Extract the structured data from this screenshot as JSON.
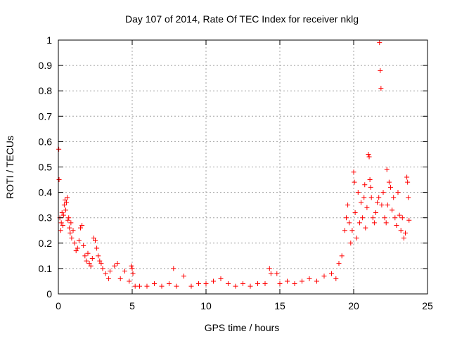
{
  "chart_data": {
    "type": "scatter",
    "title": "Day 107 of 2014, Rate Of TEC Index for receiver nklg",
    "xlabel": "GPS time / hours",
    "ylabel": "ROTI / TECUs",
    "xlim": [
      0,
      25
    ],
    "ylim": [
      0,
      1
    ],
    "x_ticks": [
      0,
      5,
      10,
      15,
      20,
      25
    ],
    "y_ticks": [
      0,
      0.1,
      0.2,
      0.3,
      0.4,
      0.5,
      0.6,
      0.7,
      0.8,
      0.9,
      1
    ],
    "x_tick_labels": [
      "0",
      "5",
      "10",
      "15",
      "20",
      "25"
    ],
    "y_tick_labels": [
      "0",
      "0.1",
      "0.2",
      "0.3",
      "0.4",
      "0.5",
      "0.6",
      "0.7",
      "0.8",
      "0.9",
      "1"
    ],
    "grid": true,
    "marker": "+",
    "series": [
      {
        "color": "#ff0000",
        "points": [
          [
            0.03,
            0.57
          ],
          [
            0.05,
            0.45
          ],
          [
            0.1,
            0.3
          ],
          [
            0.15,
            0.25
          ],
          [
            0.2,
            0.28
          ],
          [
            0.25,
            0.32
          ],
          [
            0.3,
            0.27
          ],
          [
            0.35,
            0.31
          ],
          [
            0.4,
            0.35
          ],
          [
            0.45,
            0.37
          ],
          [
            0.5,
            0.33
          ],
          [
            0.55,
            0.36
          ],
          [
            0.6,
            0.38
          ],
          [
            0.65,
            0.29
          ],
          [
            0.7,
            0.3
          ],
          [
            0.75,
            0.26
          ],
          [
            0.8,
            0.24
          ],
          [
            0.85,
            0.28
          ],
          [
            0.9,
            0.22
          ],
          [
            1.0,
            0.25
          ],
          [
            1.1,
            0.2
          ],
          [
            1.2,
            0.17
          ],
          [
            1.3,
            0.18
          ],
          [
            1.4,
            0.21
          ],
          [
            1.5,
            0.26
          ],
          [
            1.6,
            0.27
          ],
          [
            1.7,
            0.19
          ],
          [
            1.8,
            0.15
          ],
          [
            1.9,
            0.13
          ],
          [
            2.0,
            0.16
          ],
          [
            2.1,
            0.12
          ],
          [
            2.2,
            0.11
          ],
          [
            2.3,
            0.14
          ],
          [
            2.4,
            0.22
          ],
          [
            2.5,
            0.21
          ],
          [
            2.6,
            0.18
          ],
          [
            2.7,
            0.15
          ],
          [
            2.8,
            0.13
          ],
          [
            2.9,
            0.12
          ],
          [
            3.0,
            0.1
          ],
          [
            3.2,
            0.08
          ],
          [
            3.4,
            0.06
          ],
          [
            3.5,
            0.09
          ],
          [
            3.8,
            0.11
          ],
          [
            4.0,
            0.12
          ],
          [
            4.2,
            0.06
          ],
          [
            4.5,
            0.09
          ],
          [
            4.8,
            0.05
          ],
          [
            4.95,
            0.11
          ],
          [
            5.0,
            0.1
          ],
          [
            5.05,
            0.08
          ],
          [
            5.2,
            0.03
          ],
          [
            5.5,
            0.03
          ],
          [
            6.0,
            0.03
          ],
          [
            6.5,
            0.04
          ],
          [
            7.0,
            0.03
          ],
          [
            7.5,
            0.04
          ],
          [
            7.8,
            0.1
          ],
          [
            8.0,
            0.03
          ],
          [
            8.5,
            0.07
          ],
          [
            9.0,
            0.03
          ],
          [
            9.5,
            0.04
          ],
          [
            10.0,
            0.04
          ],
          [
            10.5,
            0.05
          ],
          [
            11.0,
            0.06
          ],
          [
            11.5,
            0.04
          ],
          [
            12.0,
            0.03
          ],
          [
            12.5,
            0.04
          ],
          [
            13.0,
            0.03
          ],
          [
            13.5,
            0.04
          ],
          [
            14.0,
            0.04
          ],
          [
            14.3,
            0.1
          ],
          [
            14.4,
            0.08
          ],
          [
            14.8,
            0.08
          ],
          [
            15.0,
            0.04
          ],
          [
            15.5,
            0.05
          ],
          [
            16.0,
            0.04
          ],
          [
            16.5,
            0.05
          ],
          [
            17.0,
            0.06
          ],
          [
            17.5,
            0.05
          ],
          [
            18.0,
            0.07
          ],
          [
            18.5,
            0.08
          ],
          [
            18.8,
            0.06
          ],
          [
            19.0,
            0.12
          ],
          [
            19.2,
            0.15
          ],
          [
            19.4,
            0.25
          ],
          [
            19.5,
            0.3
          ],
          [
            19.6,
            0.35
          ],
          [
            19.7,
            0.28
          ],
          [
            19.8,
            0.2
          ],
          [
            19.9,
            0.25
          ],
          [
            20.0,
            0.48
          ],
          [
            20.05,
            0.44
          ],
          [
            20.1,
            0.32
          ],
          [
            20.2,
            0.22
          ],
          [
            20.3,
            0.4
          ],
          [
            20.4,
            0.28
          ],
          [
            20.5,
            0.36
          ],
          [
            20.6,
            0.3
          ],
          [
            20.7,
            0.38
          ],
          [
            20.75,
            0.43
          ],
          [
            20.8,
            0.26
          ],
          [
            20.9,
            0.34
          ],
          [
            21.0,
            0.55
          ],
          [
            21.05,
            0.54
          ],
          [
            21.1,
            0.45
          ],
          [
            21.15,
            0.42
          ],
          [
            21.2,
            0.38
          ],
          [
            21.3,
            0.3
          ],
          [
            21.4,
            0.28
          ],
          [
            21.5,
            0.32
          ],
          [
            21.6,
            0.36
          ],
          [
            21.7,
            0.38
          ],
          [
            21.75,
            0.99
          ],
          [
            21.8,
            0.88
          ],
          [
            21.85,
            0.81
          ],
          [
            21.9,
            0.35
          ],
          [
            22.0,
            0.4
          ],
          [
            22.1,
            0.3
          ],
          [
            22.2,
            0.28
          ],
          [
            22.25,
            0.49
          ],
          [
            22.3,
            0.35
          ],
          [
            22.4,
            0.44
          ],
          [
            22.5,
            0.42
          ],
          [
            22.6,
            0.33
          ],
          [
            22.7,
            0.38
          ],
          [
            22.8,
            0.3
          ],
          [
            22.9,
            0.27
          ],
          [
            23.0,
            0.4
          ],
          [
            23.1,
            0.31
          ],
          [
            23.2,
            0.25
          ],
          [
            23.3,
            0.3
          ],
          [
            23.4,
            0.22
          ],
          [
            23.5,
            0.24
          ],
          [
            23.6,
            0.46
          ],
          [
            23.65,
            0.44
          ],
          [
            23.7,
            0.38
          ],
          [
            23.75,
            0.29
          ]
        ]
      }
    ]
  }
}
